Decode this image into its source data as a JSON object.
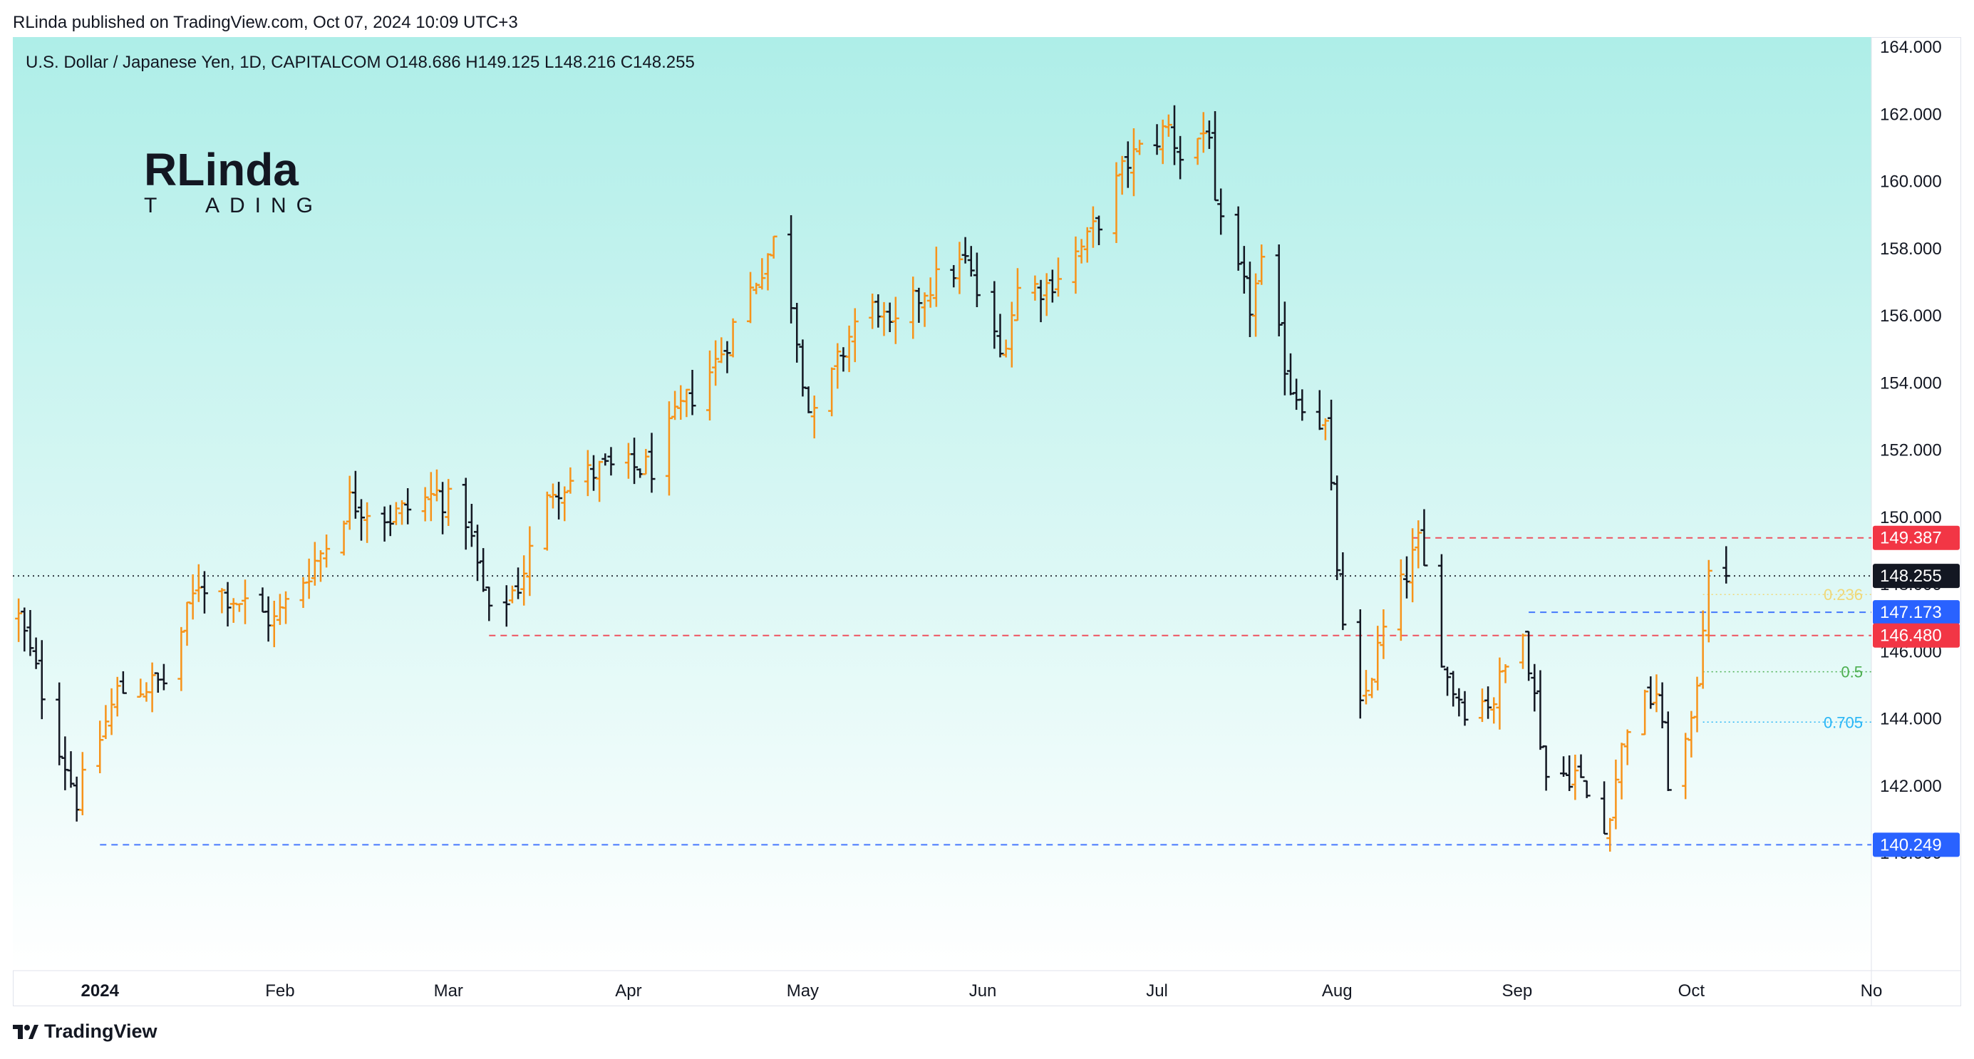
{
  "published_line": "RLinda published on TradingView.com, Oct 07, 2024 10:09 UTC+3",
  "symbol_info": "U.S. Dollar / Japanese Yen, 1D, CAPITALCOM  O148.686  H149.125  L148.216  C148.255",
  "logo": {
    "line1": "RLinda",
    "line2_left": "T",
    "line2_right": "ADING"
  },
  "footer": {
    "brand": "TradingView",
    "icon": "tradingview-logo-icon"
  },
  "colors": {
    "up": "#f7931a",
    "down": "#131722",
    "bg_top": "#aeeee8",
    "bg_bottom": "#ffffff",
    "red_level": "#f23645",
    "blue_level": "#2962ff",
    "last_price": "#131722"
  },
  "chart_data": {
    "type": "ohlc-bar",
    "symbol": "U.S. Dollar / Japanese Yen",
    "timeframe": "1D",
    "y_axis_ticks": [
      "140.000",
      "142.000",
      "144.000",
      "146.000",
      "148.000",
      "150.000",
      "152.000",
      "154.000",
      "156.000",
      "158.000",
      "160.000",
      "162.000",
      "164.000"
    ],
    "y_range": [
      136.5,
      164.3
    ],
    "x_axis_labels": [
      {
        "label": "2024",
        "date": "2024-01-01",
        "bold": true
      },
      {
        "label": "Feb",
        "date": "2024-02-01"
      },
      {
        "label": "Mar",
        "date": "2024-03-01"
      },
      {
        "label": "Apr",
        "date": "2024-04-01"
      },
      {
        "label": "May",
        "date": "2024-05-01"
      },
      {
        "label": "Jun",
        "date": "2024-06-01"
      },
      {
        "label": "Jul",
        "date": "2024-07-01"
      },
      {
        "label": "Aug",
        "date": "2024-08-01"
      },
      {
        "label": "Sep",
        "date": "2024-09-01"
      },
      {
        "label": "Oct",
        "date": "2024-10-01"
      },
      {
        "label": "No",
        "date": "2024-11-01"
      }
    ],
    "x_range": [
      "2023-12-17",
      "2024-11-01"
    ],
    "price_labels": [
      {
        "value": 149.387,
        "text": "149.387",
        "color": "#f23645"
      },
      {
        "value": 148.255,
        "text": "148.255",
        "color": "#131722"
      },
      {
        "value": 147.173,
        "text": "147.173",
        "color": "#2962ff"
      },
      {
        "value": 146.48,
        "text": "146.480",
        "color": "#f23645"
      },
      {
        "value": 140.249,
        "text": "140.249",
        "color": "#2962ff"
      }
    ],
    "horizontal_levels": [
      {
        "value": 149.387,
        "from": "2024-08-14",
        "color": "#f23645",
        "style": "dashed"
      },
      {
        "value": 148.255,
        "from": "2023-12-17",
        "color": "#131722",
        "style": "dotted"
      },
      {
        "value": 147.173,
        "from": "2024-09-03",
        "color": "#2962ff",
        "style": "dashed"
      },
      {
        "value": 146.48,
        "from": "2024-03-08",
        "color": "#f23645",
        "style": "dashed"
      },
      {
        "value": 140.249,
        "from": "2024-01-01",
        "color": "#2962ff",
        "style": "dashed"
      }
    ],
    "fib_levels": [
      {
        "label": "0.236",
        "value": 147.7,
        "color": "#f0d878"
      },
      {
        "label": "0.5",
        "value": 145.4,
        "color": "#4caf50"
      },
      {
        "label": "0.705",
        "value": 143.9,
        "color": "#29b6f6"
      }
    ],
    "fib_start": "2024-10-03",
    "waypoints": [
      {
        "date": "2023-12-18",
        "price": 147.0
      },
      {
        "date": "2023-12-28",
        "price": 141.6
      },
      {
        "date": "2024-01-04",
        "price": 144.8
      },
      {
        "date": "2024-01-12",
        "price": 145.1
      },
      {
        "date": "2024-01-18",
        "price": 148.1
      },
      {
        "date": "2024-01-24",
        "price": 147.6
      },
      {
        "date": "2024-01-31",
        "price": 146.9
      },
      {
        "date": "2024-02-09",
        "price": 149.2
      },
      {
        "date": "2024-02-13",
        "price": 150.5
      },
      {
        "date": "2024-02-20",
        "price": 150.0
      },
      {
        "date": "2024-02-28",
        "price": 150.7
      },
      {
        "date": "2024-03-04",
        "price": 150.0
      },
      {
        "date": "2024-03-08",
        "price": 147.0
      },
      {
        "date": "2024-03-13",
        "price": 148.0
      },
      {
        "date": "2024-03-19",
        "price": 150.9
      },
      {
        "date": "2024-03-27",
        "price": 151.4
      },
      {
        "date": "2024-04-05",
        "price": 151.5
      },
      {
        "date": "2024-04-10",
        "price": 153.2
      },
      {
        "date": "2024-04-16",
        "price": 154.6
      },
      {
        "date": "2024-04-26",
        "price": 158.2
      },
      {
        "date": "2024-04-29",
        "price": 156.5
      },
      {
        "date": "2024-05-02",
        "price": 153.2
      },
      {
        "date": "2024-05-03",
        "price": 152.9
      },
      {
        "date": "2024-05-10",
        "price": 155.8
      },
      {
        "date": "2024-05-14",
        "price": 156.3
      },
      {
        "date": "2024-05-16",
        "price": 155.4
      },
      {
        "date": "2024-05-22",
        "price": 156.8
      },
      {
        "date": "2024-05-29",
        "price": 157.6
      },
      {
        "date": "2024-06-04",
        "price": 154.8
      },
      {
        "date": "2024-06-07",
        "price": 156.8
      },
      {
        "date": "2024-06-12",
        "price": 156.9
      },
      {
        "date": "2024-06-19",
        "price": 158.2
      },
      {
        "date": "2024-06-26",
        "price": 160.6
      },
      {
        "date": "2024-07-03",
        "price": 161.6
      },
      {
        "date": "2024-07-05",
        "price": 160.8
      },
      {
        "date": "2024-07-10",
        "price": 161.6
      },
      {
        "date": "2024-07-11",
        "price": 159.0
      },
      {
        "date": "2024-07-17",
        "price": 156.3
      },
      {
        "date": "2024-07-19",
        "price": 157.4
      },
      {
        "date": "2024-07-24",
        "price": 153.9
      },
      {
        "date": "2024-07-30",
        "price": 152.7
      },
      {
        "date": "2024-08-02",
        "price": 146.5
      },
      {
        "date": "2024-08-05",
        "price": 144.2
      },
      {
        "date": "2024-08-09",
        "price": 146.6
      },
      {
        "date": "2024-08-15",
        "price": 149.2
      },
      {
        "date": "2024-08-20",
        "price": 145.2
      },
      {
        "date": "2024-08-23",
        "price": 144.4
      },
      {
        "date": "2024-08-28",
        "price": 144.6
      },
      {
        "date": "2024-09-02",
        "price": 146.9
      },
      {
        "date": "2024-09-06",
        "price": 142.3
      },
      {
        "date": "2024-09-11",
        "price": 142.4
      },
      {
        "date": "2024-09-16",
        "price": 140.6
      },
      {
        "date": "2024-09-20",
        "price": 143.9
      },
      {
        "date": "2024-09-25",
        "price": 144.8
      },
      {
        "date": "2024-09-27",
        "price": 142.2
      },
      {
        "date": "2024-10-01",
        "price": 143.6
      },
      {
        "date": "2024-10-03",
        "price": 146.9
      },
      {
        "date": "2024-10-04",
        "price": 148.7
      },
      {
        "date": "2024-10-07",
        "price": 148.255
      }
    ]
  }
}
